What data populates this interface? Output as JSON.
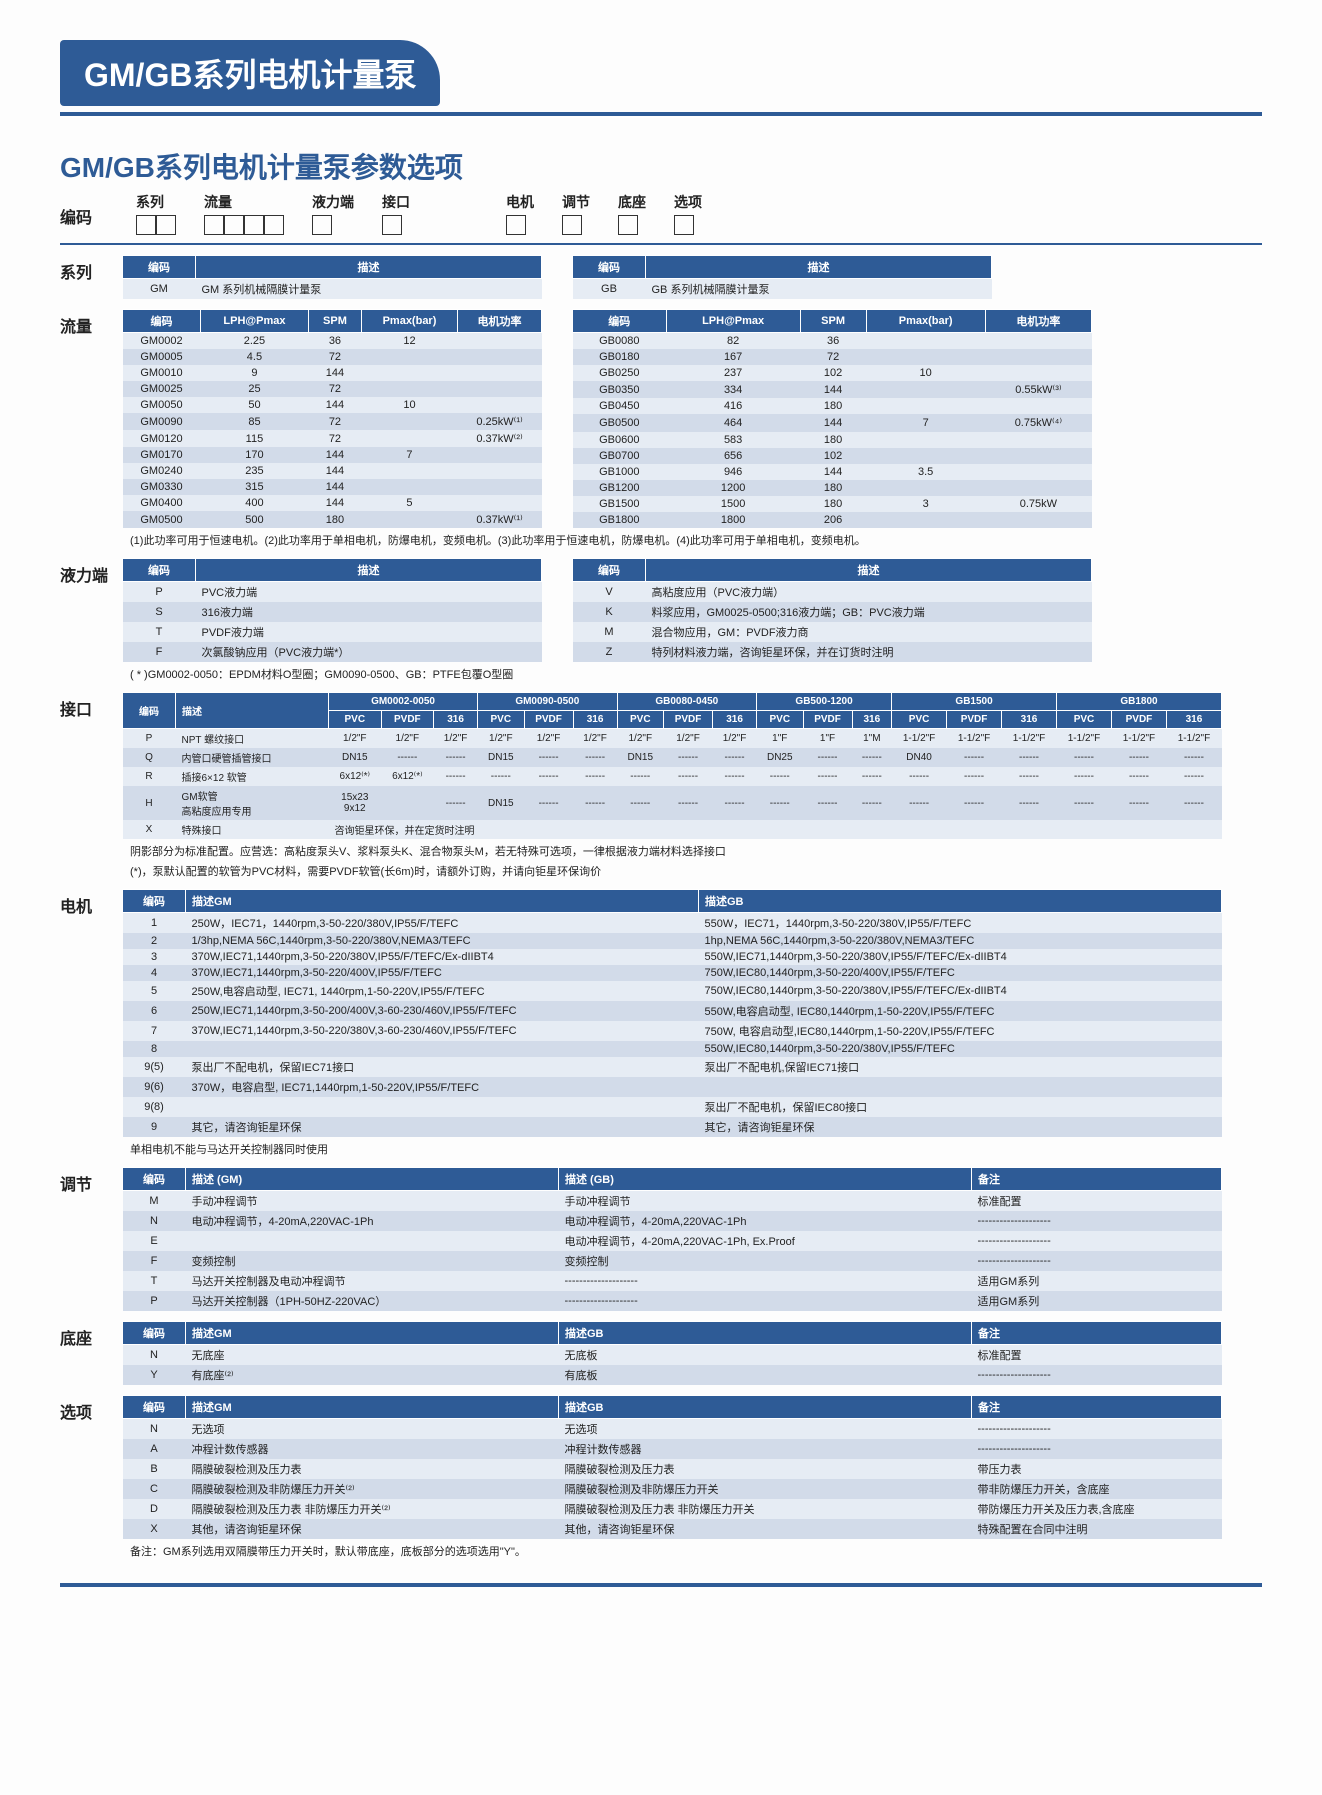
{
  "title_bar": "GM/GB系列电机计量泵",
  "subtitle": "GM/GB系列电机计量泵参数选项",
  "encode_row": {
    "label": "编码",
    "groups": [
      {
        "label": "系列",
        "n": 2
      },
      {
        "label": "流量",
        "n": 4
      },
      {
        "label": "液力端",
        "n": 1
      },
      {
        "label": "接口",
        "n": 1
      },
      {
        "label": "电机",
        "n": 1
      },
      {
        "label": "调节",
        "n": 1
      },
      {
        "label": "底座",
        "n": 1
      },
      {
        "label": "选项",
        "n": 1
      }
    ]
  },
  "sections": {
    "series": {
      "label": "系列"
    },
    "flow": {
      "label": "流量"
    },
    "liquid": {
      "label": "液力端"
    },
    "port": {
      "label": "接口"
    },
    "motor": {
      "label": "电机"
    },
    "adjust": {
      "label": "调节"
    },
    "base": {
      "label": "底座"
    },
    "option": {
      "label": "选项"
    }
  },
  "series_tables": {
    "headers": [
      "编码",
      "描述"
    ],
    "left": [
      [
        "GM",
        "GM 系列机械隔膜计量泵"
      ]
    ],
    "right": [
      [
        "GB",
        "GB 系列机械隔膜计量泵"
      ]
    ]
  },
  "flow_headers": [
    "编码",
    "LPH@Pmax",
    "SPM",
    "Pmax(bar)",
    "电机功率"
  ],
  "flow_gm": [
    [
      "GM0002",
      "2.25",
      "36",
      "12",
      ""
    ],
    [
      "GM0005",
      "4.5",
      "72",
      "",
      ""
    ],
    [
      "GM0010",
      "9",
      "144",
      "",
      ""
    ],
    [
      "GM0025",
      "25",
      "72",
      "",
      ""
    ],
    [
      "GM0050",
      "50",
      "144",
      "10",
      ""
    ],
    [
      "GM0090",
      "85",
      "72",
      "",
      "0.25kW⁽¹⁾"
    ],
    [
      "GM0120",
      "115",
      "72",
      "",
      "0.37kW⁽²⁾"
    ],
    [
      "GM0170",
      "170",
      "144",
      "7",
      ""
    ],
    [
      "GM0240",
      "235",
      "144",
      "",
      ""
    ],
    [
      "GM0330",
      "315",
      "144",
      "",
      ""
    ],
    [
      "GM0400",
      "400",
      "144",
      "5",
      ""
    ],
    [
      "GM0500",
      "500",
      "180",
      "",
      "0.37kW⁽¹⁾"
    ]
  ],
  "flow_gb": [
    [
      "GB0080",
      "82",
      "36",
      "",
      ""
    ],
    [
      "GB0180",
      "167",
      "72",
      "",
      ""
    ],
    [
      "GB0250",
      "237",
      "102",
      "10",
      ""
    ],
    [
      "GB0350",
      "334",
      "144",
      "",
      "0.55kW⁽³⁾"
    ],
    [
      "GB0450",
      "416",
      "180",
      "",
      ""
    ],
    [
      "GB0500",
      "464",
      "144",
      "7",
      "0.75kW⁽⁴⁾"
    ],
    [
      "GB0600",
      "583",
      "180",
      "",
      ""
    ],
    [
      "GB0700",
      "656",
      "102",
      "",
      ""
    ],
    [
      "GB1000",
      "946",
      "144",
      "3.5",
      ""
    ],
    [
      "GB1200",
      "1200",
      "180",
      "",
      ""
    ],
    [
      "GB1500",
      "1500",
      "180",
      "3",
      "0.75kW"
    ],
    [
      "GB1800",
      "1800",
      "206",
      "",
      ""
    ]
  ],
  "flow_note": "(1)此功率可用于恒速电机。(2)此功率用于单相电机，防爆电机，变频电机。(3)此功率用于恒速电机，防爆电机。(4)此功率可用于单相电机，变频电机。",
  "liquid_left": {
    "headers": [
      "编码",
      "描述"
    ],
    "rows": [
      [
        "P",
        "PVC液力端"
      ],
      [
        "S",
        "316液力端"
      ],
      [
        "T",
        "PVDF液力端"
      ],
      [
        "F",
        "次氯酸钠应用（PVC液力端*）"
      ]
    ]
  },
  "liquid_right": {
    "headers": [
      "编码",
      "描述"
    ],
    "rows": [
      [
        "V",
        "高粘度应用（PVC液力端）"
      ],
      [
        "K",
        "料浆应用，GM0025-0500;316液力端；GB：PVC液力端"
      ],
      [
        "M",
        "混合物应用，GM：PVDF液力商"
      ],
      [
        "Z",
        "特列材料液力端，咨询钜星环保，并在订货时注明"
      ]
    ]
  },
  "liquid_note": "( * )GM0002-0050：EPDM材料O型圈；GM0090-0500、GB：PTFE包覆O型圈",
  "port_note1": "阴影部分为标准配置。应营选：高粘度泵头V、浆料泵头K、混合物泵头M，若无特殊可选项，一律根据液力端材料选择接口",
  "port_note2": "(*)，泵默认配置的软管为PVC材料，需要PVDF软管(长6m)时，请额外订购，并请向钜星环保询价",
  "port": {
    "row_headers": [
      "编码",
      "描述"
    ],
    "groups": [
      "GM0002-0050",
      "GM0090-0500",
      "GB0080-0450",
      "GB500-1200",
      "GB1500",
      "GB1800"
    ],
    "sub": [
      "PVC",
      "PVDF",
      "316"
    ],
    "rows": [
      {
        "code": "P",
        "desc": "NPT 螺纹接口",
        "v": [
          "1/2\"F",
          "1/2\"F",
          "1/2\"F",
          "1/2\"F",
          "1/2\"F",
          "1/2\"F",
          "1/2\"F",
          "1/2\"F",
          "1/2\"F",
          "1\"F",
          "1\"F",
          "1\"M",
          "1-1/2\"F",
          "1-1/2\"F",
          "1-1/2\"F",
          "1-1/2\"F",
          "1-1/2\"F",
          "1-1/2\"F"
        ]
      },
      {
        "code": "Q",
        "desc": "内管口硬管插管接口",
        "v": [
          "DN15",
          "------",
          "------",
          "DN15",
          "------",
          "------",
          "DN15",
          "------",
          "------",
          "DN25",
          "------",
          "------",
          "DN40",
          "------",
          "------",
          "------",
          "------",
          "------"
        ]
      },
      {
        "code": "R",
        "desc": "插接6×12 软管",
        "v": [
          "6x12⁽*⁾",
          "6x12⁽*⁾",
          "------",
          "------",
          "------",
          "------",
          "------",
          "------",
          "------",
          "------",
          "------",
          "------",
          "------",
          "------",
          "------",
          "------",
          "------",
          "------"
        ]
      },
      {
        "code": "H",
        "desc": "GM软管\n高粘度应用专用",
        "v": [
          "15x23\n9x12",
          "",
          "------",
          "DN15",
          "------",
          "------",
          "------",
          "------",
          "------",
          "------",
          "------",
          "------",
          "------",
          "------",
          "------",
          "------",
          "------",
          "------"
        ]
      },
      {
        "code": "X",
        "desc": "特殊接口",
        "v": [
          "咨询钜星环保，并在定货时注明",
          "",
          "",
          "",
          "",
          "",
          "",
          "",
          "",
          "",
          "",
          "",
          "",
          "",
          "",
          "",
          "",
          ""
        ]
      }
    ]
  },
  "motor": {
    "headers": [
      "编码",
      "描述GM",
      "描述GB"
    ],
    "rows": [
      [
        "1",
        "250W，IEC71，1440rpm,3-50-220/380V,IP55/F/TEFC",
        "550W，IEC71，1440rpm,3-50-220/380V,IP55/F/TEFC"
      ],
      [
        "2",
        "1/3hp,NEMA 56C,1440rpm,3-50-220/380V,NEMA3/TEFC",
        "1hp,NEMA 56C,1440rpm,3-50-220/380V,NEMA3/TEFC"
      ],
      [
        "3",
        "370W,IEC71,1440rpm,3-50-220/380V,IP55/F/TEFC/Ex-dIIBT4",
        "550W,IEC71,1440rpm,3-50-220/380V,IP55/F/TEFC/Ex-dIIBT4"
      ],
      [
        "4",
        "370W,IEC71,1440rpm,3-50-220/400V,IP55/F/TEFC",
        "750W,IEC80,1440rpm,3-50-220/400V,IP55/F/TEFC"
      ],
      [
        "5",
        "250W,电容启动型, IEC71, 1440rpm,1-50-220V,IP55/F/TEFC",
        "750W,IEC80,1440rpm,3-50-220/380V,IP55/F/TEFC/Ex-dIIBT4"
      ],
      [
        "6",
        "250W,IEC71,1440rpm,3-50-200/400V,3-60-230/460V,IP55/F/TEFC",
        "550W,电容启动型, IEC80,1440rpm,1-50-220V,IP55/F/TEFC"
      ],
      [
        "7",
        "370W,IEC71,1440rpm,3-50-220/380V,3-60-230/460V,IP55/F/TEFC",
        "750W, 电容启动型,IEC80,1440rpm,1-50-220V,IP55/F/TEFC"
      ],
      [
        "8",
        "",
        "550W,IEC80,1440rpm,3-50-220/380V,IP55/F/TEFC"
      ],
      [
        "9(5)",
        "泵出厂不配电机，保留IEC71接口",
        "泵出厂不配电机,保留IEC71接口"
      ],
      [
        "9(6)",
        "370W，电容启型, IEC71,1440rpm,1-50-220V,IP55/F/TEFC",
        ""
      ],
      [
        "9(8)",
        "",
        "泵出厂不配电机，保留IEC80接口"
      ],
      [
        "9",
        "其它，请咨询钜星环保",
        "其它，请咨询钜星环保"
      ]
    ],
    "note": "单相电机不能与马达开关控制器同时使用"
  },
  "adjust": {
    "headers": [
      "编码",
      "描述 (GM)",
      "描述 (GB)",
      "备注"
    ],
    "rows": [
      [
        "M",
        "手动冲程调节",
        "手动冲程调节",
        "标准配置"
      ],
      [
        "N",
        "电动冲程调节，4-20mA,220VAC-1Ph",
        "电动冲程调节，4-20mA,220VAC-1Ph",
        "--------------------"
      ],
      [
        "E",
        "",
        "电动冲程调节，4-20mA,220VAC-1Ph, Ex.Proof",
        "--------------------"
      ],
      [
        "F",
        "变频控制",
        "变频控制",
        "--------------------"
      ],
      [
        "T",
        "马达开关控制器及电动冲程调节",
        "--------------------",
        "适用GM系列"
      ],
      [
        "P",
        "马达开关控制器（1PH-50HZ-220VAC）",
        "--------------------",
        "适用GM系列"
      ]
    ]
  },
  "base": {
    "headers": [
      "编码",
      "描述GM",
      "描述GB",
      "备注"
    ],
    "rows": [
      [
        "N",
        "无底座",
        "无底板",
        "标准配置"
      ],
      [
        "Y",
        "有底座⁽²⁾",
        "有底板",
        "--------------------"
      ]
    ]
  },
  "option": {
    "headers": [
      "编码",
      "描述GM",
      "描述GB",
      "备注"
    ],
    "rows": [
      [
        "N",
        "无选项",
        "无选项",
        "--------------------"
      ],
      [
        "A",
        "冲程计数传感器",
        "冲程计数传感器",
        "--------------------"
      ],
      [
        "B",
        "隔膜破裂检测及压力表",
        "隔膜破裂检测及压力表",
        "带压力表"
      ],
      [
        "C",
        "隔膜破裂检测及非防爆压力开关⁽²⁾",
        "隔膜破裂检测及非防爆压力开关",
        "带非防爆压力开关，含底座"
      ],
      [
        "D",
        "隔膜破裂检测及压力表  非防爆压力开关⁽²⁾",
        "隔膜破裂检测及压力表  非防爆压力开关",
        "带防爆压力开关及压力表,含底座"
      ],
      [
        "X",
        "其他，请咨询钜星环保",
        "其他，请咨询钜星环保",
        "特殊配置在合同中注明"
      ]
    ],
    "note": "备注：GM系列选用双隔膜带压力开关时，默认带底座，底板部分的选项选用\"Y\"。"
  }
}
